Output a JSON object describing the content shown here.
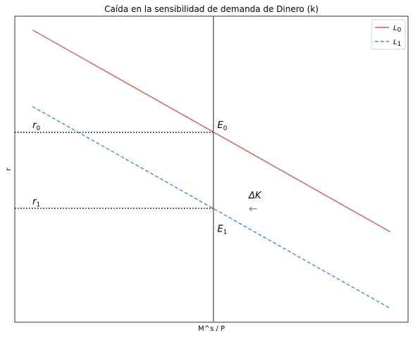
{
  "chart_data": {
    "type": "line",
    "title": "Caída en la sensibilidad de demanda de Dinero (k)",
    "xlabel": "M^s / P",
    "ylabel": "r",
    "xlim": [
      0,
      100
    ],
    "ylim": [
      0,
      100
    ],
    "grid": false,
    "legend_position": "top-right",
    "series": [
      {
        "name": "L",
        "subscript": "0",
        "color": "#cd5c5c",
        "dash": "solid",
        "x": [
          4.5,
          95.5
        ],
        "y": [
          95.5,
          29.5
        ]
      },
      {
        "name": "L",
        "subscript": "1",
        "color": "#3f8ce6",
        "dash": "dashed",
        "x": [
          4.5,
          95.5
        ],
        "y": [
          70.5,
          4.5
        ]
      }
    ],
    "vline": {
      "x": 50.5,
      "color": "#6b6b6b"
    },
    "hlines": [
      {
        "y": 62.0,
        "x_end": 50.5,
        "color": "#000000"
      },
      {
        "y": 37.2,
        "x_end": 50.5,
        "color": "#000000"
      }
    ],
    "annotations": [
      {
        "id": "r0",
        "base": "r",
        "sub": "0",
        "x": 4.5,
        "y": 63.5
      },
      {
        "id": "r1",
        "base": "r",
        "sub": "1",
        "x": 4.5,
        "y": 38.5
      },
      {
        "id": "E0",
        "base": "E",
        "sub": "0",
        "x": 51.5,
        "y": 63.5
      },
      {
        "id": "E1",
        "base": "E",
        "sub": "1",
        "x": 51.5,
        "y": 29.5
      },
      {
        "id": "dK",
        "base": "ΔK",
        "sub": "",
        "x": 59.5,
        "y": 40.5
      }
    ],
    "arrow": {
      "glyph": "←",
      "x": 59.5,
      "y": 36.0,
      "color": "#808080"
    }
  }
}
